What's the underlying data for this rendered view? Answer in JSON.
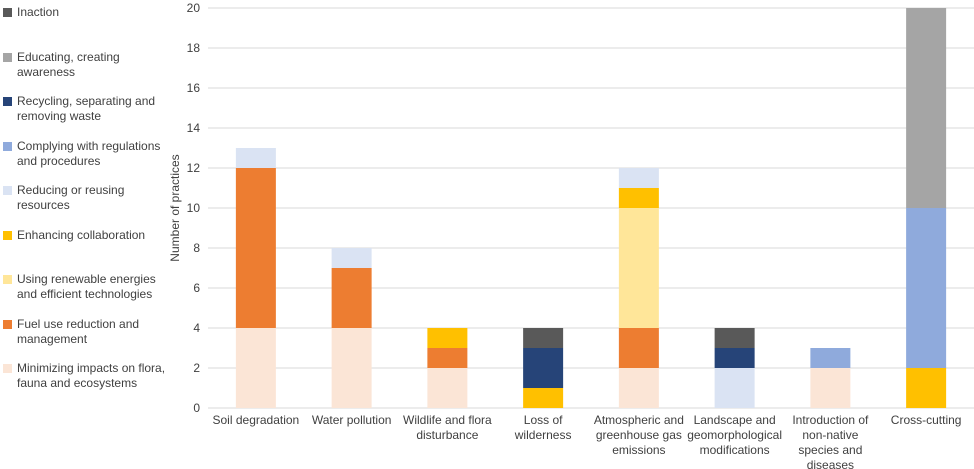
{
  "chart_data": {
    "type": "stacked_bar",
    "y_label": "Number of practices",
    "categories": [
      "Soil degradation",
      "Water pollution",
      "Wildlife and flora disturbance",
      "Loss of wilderness",
      "Atmospheric and greenhouse gas emissions",
      "Landscape and geomorphological modifications",
      "Introduction of non-native species and diseases",
      "Cross-cutting"
    ],
    "series": [
      {
        "name": "Inaction",
        "color": "#595959",
        "values": [
          0,
          0,
          0,
          1,
          0,
          1,
          0,
          0
        ]
      },
      {
        "name": "Educating, creating awareness",
        "color": "#a5a5a5",
        "values": [
          0,
          0,
          0,
          0,
          0,
          0,
          0,
          10
        ]
      },
      {
        "name": "Recycling, separating and removing waste",
        "color": "#264478",
        "values": [
          0,
          0,
          0,
          2,
          0,
          1,
          0,
          0
        ]
      },
      {
        "name": "Complying with regulations and procedures",
        "color": "#8faadc",
        "values": [
          0,
          0,
          0,
          0,
          0,
          0,
          1,
          8
        ]
      },
      {
        "name": "Reducing or reusing resources",
        "color": "#dae3f3",
        "values": [
          1,
          1,
          0,
          0,
          1,
          2,
          0,
          0
        ]
      },
      {
        "name": "Enhancing collaboration",
        "color": "#ffc000",
        "values": [
          0,
          0,
          1,
          1,
          1,
          0,
          0,
          2
        ]
      },
      {
        "name": "Using renewable energies and efficient technologies",
        "color": "#ffe699",
        "values": [
          0,
          0,
          0,
          0,
          6,
          0,
          0,
          0
        ]
      },
      {
        "name": "Fuel use reduction and management",
        "color": "#ed7d31",
        "values": [
          8,
          3,
          1,
          0,
          2,
          0,
          0,
          0
        ]
      },
      {
        "name": "Minimizing impacts on flora, fauna and ecosystems",
        "color": "#fbe5d6",
        "values": [
          4,
          4,
          2,
          0,
          2,
          0,
          2,
          0
        ]
      }
    ],
    "ylim": [
      0,
      20
    ],
    "yticks": [
      0,
      2,
      4,
      6,
      8,
      10,
      12,
      14,
      16,
      18,
      20
    ],
    "grid": true,
    "legend": "left"
  }
}
